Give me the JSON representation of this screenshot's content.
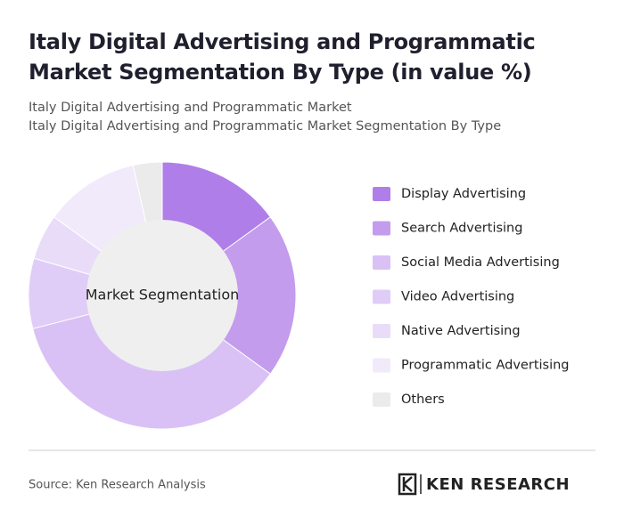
{
  "chart_data": {
    "type": "pie",
    "title": "Italy Digital Advertising and Programmatic Market Segmentation By Type (in value %)",
    "subtitles": [
      "Italy Digital Advertising and Programmatic Market",
      "Italy Digital Advertising and Programmatic Market Segmentation By Type"
    ],
    "center_label": "Market Segmentation",
    "categories": [
      "Display Advertising",
      "Search Advertising",
      "Social Media Advertising",
      "Video Advertising",
      "Native Advertising",
      "Programmatic Advertising",
      "Others"
    ],
    "values": [
      15,
      20,
      36,
      8.5,
      5.5,
      11.5,
      3.5
    ],
    "colors": [
      "#b07ee8",
      "#c39ced",
      "#d9c1f5",
      "#e0cdf7",
      "#e9dcf9",
      "#f1eafb",
      "#ebebeb"
    ],
    "legend": "right"
  },
  "footer": {
    "source": "Source: Ken Research Analysis",
    "logo": "KEN RESEARCH"
  }
}
